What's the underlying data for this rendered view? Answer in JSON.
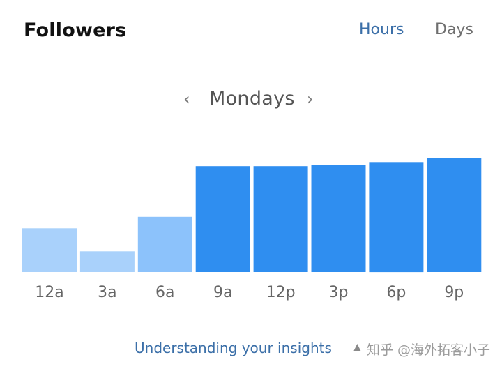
{
  "header": {
    "title": "Followers",
    "toggle_hours": "Hours",
    "toggle_days": "Days"
  },
  "nav": {
    "prev_icon": "chevron-left-icon",
    "next_icon": "chevron-right-icon",
    "prev_glyph": "‹",
    "next_glyph": "›",
    "day": "Mondays"
  },
  "chart_data": {
    "type": "bar",
    "categories": [
      "12a",
      "3a",
      "6a",
      "9a",
      "12p",
      "3p",
      "6p",
      "9p"
    ],
    "values": [
      38,
      18,
      48,
      92,
      92,
      93,
      95,
      99
    ],
    "ylim": [
      0,
      100
    ],
    "grid": false,
    "colors": [
      "#a9d1fb",
      "#a9d1fb",
      "#8cc2fb",
      "#2f8ef0",
      "#2f8ef0",
      "#2f8ef0",
      "#2f8ef0",
      "#2f8ef0"
    ]
  },
  "footer": {
    "link": "Understanding your insights",
    "chevron_icon": "chevron-up-icon",
    "watermark": "知乎 @海外拓客小子"
  }
}
